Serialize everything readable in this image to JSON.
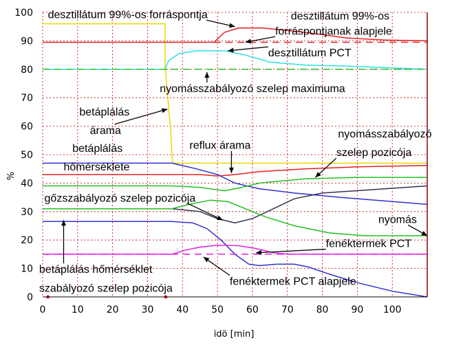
{
  "chart_data": {
    "type": "line",
    "xlabel": "idö [min]",
    "ylabel": "%",
    "xlim": [
      0,
      110
    ],
    "ylim": [
      0,
      100
    ],
    "x_ticks": [
      0,
      10,
      20,
      30,
      40,
      50,
      60,
      70,
      80,
      90,
      100
    ],
    "y_ticks": [
      0,
      10,
      20,
      30,
      40,
      50,
      60,
      70,
      80,
      90,
      100
    ],
    "grid": true,
    "series": [
      {
        "color": "#e8d800",
        "dash": false,
        "points": [
          [
            0,
            96
          ],
          [
            35,
            96
          ],
          [
            35,
            81
          ],
          [
            36.5,
            60
          ],
          [
            37.2,
            47
          ],
          [
            110,
            47
          ]
        ]
      },
      {
        "color": "#e02020",
        "dash": false,
        "points": [
          [
            0,
            89.5
          ],
          [
            49,
            89.5
          ],
          [
            52,
            93
          ],
          [
            56,
            94.5
          ],
          [
            63,
            94.5
          ],
          [
            75,
            93
          ],
          [
            87,
            91
          ],
          [
            98,
            90.3
          ],
          [
            110,
            90
          ]
        ]
      },
      {
        "color": "#e02020",
        "dash": true,
        "points": [
          [
            49,
            89.5
          ],
          [
            110,
            89.5
          ]
        ]
      },
      {
        "color": "#30e0e0",
        "dash": false,
        "points": [
          [
            0,
            80
          ],
          [
            35,
            80
          ],
          [
            36,
            83
          ],
          [
            39,
            85.5
          ],
          [
            44,
            86.5
          ],
          [
            52,
            86.5
          ],
          [
            58,
            85
          ],
          [
            65,
            82.5
          ],
          [
            75,
            81.5
          ],
          [
            90,
            81
          ],
          [
            110,
            80
          ]
        ]
      },
      {
        "color": "#20c020",
        "dash": true,
        "points": [
          [
            0,
            80
          ],
          [
            110,
            80
          ]
        ]
      },
      {
        "color": "#e02020",
        "dash": false,
        "points": [
          [
            0,
            43
          ],
          [
            37,
            43
          ],
          [
            45,
            43
          ],
          [
            50,
            42.5
          ],
          [
            55,
            43
          ],
          [
            62,
            44
          ],
          [
            75,
            45
          ],
          [
            90,
            45.7
          ],
          [
            110,
            46.2
          ]
        ]
      },
      {
        "color": "#3030d0",
        "dash": false,
        "points": [
          [
            0,
            47
          ],
          [
            37,
            47
          ],
          [
            44,
            45
          ],
          [
            50,
            43
          ],
          [
            55,
            40
          ],
          [
            62,
            38
          ],
          [
            72,
            36.5
          ],
          [
            85,
            35
          ],
          [
            100,
            33.5
          ],
          [
            110,
            32.5
          ]
        ]
      },
      {
        "color": "#20c020",
        "dash": false,
        "points": [
          [
            0,
            39
          ],
          [
            37,
            39
          ],
          [
            45,
            38.5
          ],
          [
            52,
            37.3
          ],
          [
            57,
            38.5
          ],
          [
            62,
            40
          ],
          [
            75,
            41.5
          ],
          [
            90,
            42
          ],
          [
            110,
            42
          ]
        ]
      },
      {
        "color": "#303050",
        "dash": false,
        "points": [
          [
            0,
            31
          ],
          [
            37,
            31
          ],
          [
            45,
            30
          ],
          [
            50,
            27.5
          ],
          [
            55,
            26
          ],
          [
            60,
            27.5
          ],
          [
            66,
            31
          ],
          [
            72,
            34.5
          ],
          [
            80,
            36.5
          ],
          [
            92,
            37.5
          ],
          [
            110,
            39
          ]
        ]
      },
      {
        "color": "#20c020",
        "dash": false,
        "points": [
          [
            0,
            31
          ],
          [
            37,
            31
          ],
          [
            42,
            32.5
          ],
          [
            48,
            34
          ],
          [
            53,
            33.5
          ],
          [
            58,
            31
          ],
          [
            64,
            28
          ],
          [
            72,
            25
          ],
          [
            82,
            22.5
          ],
          [
            92,
            21.5
          ],
          [
            110,
            21.5
          ]
        ]
      },
      {
        "color": "#3030d0",
        "dash": false,
        "points": [
          [
            0,
            26.5
          ],
          [
            37,
            26.5
          ],
          [
            43,
            26
          ],
          [
            47,
            24
          ],
          [
            51,
            20
          ],
          [
            55,
            15
          ],
          [
            59,
            11.5
          ],
          [
            62,
            11
          ],
          [
            67,
            11.5
          ],
          [
            72,
            11.5
          ],
          [
            76,
            10.5
          ],
          [
            82,
            8
          ],
          [
            90,
            5
          ],
          [
            100,
            2
          ],
          [
            110,
            0
          ]
        ]
      },
      {
        "color": "#e020e0",
        "dash": false,
        "points": [
          [
            0,
            15
          ],
          [
            37,
            15
          ],
          [
            41,
            16.5
          ],
          [
            45,
            17.5
          ],
          [
            50,
            18.2
          ],
          [
            56,
            18
          ],
          [
            61,
            17
          ],
          [
            66,
            15.5
          ],
          [
            70,
            15
          ],
          [
            110,
            15
          ]
        ]
      },
      {
        "color": "#e020e0",
        "dash": true,
        "points": [
          [
            0,
            15
          ],
          [
            110,
            15
          ]
        ]
      },
      {
        "color": "#8b0000",
        "dash": false,
        "points": [
          [
            110,
            0
          ],
          [
            110,
            100
          ]
        ]
      }
    ],
    "markers": [
      {
        "x": 1.5,
        "y": 0,
        "color": "#e02020"
      },
      {
        "x": 35.2,
        "y": 0,
        "color": "#e02020"
      }
    ],
    "annotations": [
      {
        "text": "desztillátum 99%-os forráspontja",
        "x": 1.5,
        "y": 98,
        "ax": 55,
        "ay": 95
      },
      {
        "text": "desztillátum 99%-os",
        "x": 71,
        "y": 97.5,
        "ax": null,
        "ay": null
      },
      {
        "text": "forráspontjanak  alapjele",
        "x": 66.5,
        "y": 92.2,
        "ax": 58,
        "ay": 89.5
      },
      {
        "text": "desztillátum PCT",
        "x": 64.5,
        "y": 84.5,
        "ax": 53,
        "ay": 86.5
      },
      {
        "text": "nyomásszabályozó szelep maximuma",
        "x": 33.5,
        "y": 72,
        "ax": 47,
        "ay": 79
      },
      {
        "text": "betáplálás",
        "x": 10.5,
        "y": 63.8,
        "ax": null,
        "ay": null
      },
      {
        "text": "árama",
        "x": 13.5,
        "y": 57.3,
        "ax": 35.7,
        "ay": 66
      },
      {
        "text": "betáplálás",
        "x": 8.5,
        "y": 51,
        "ax": null,
        "ay": null
      },
      {
        "text": "hőmérséklete",
        "x": 6,
        "y": 44.5,
        "ax": null,
        "ay": null
      },
      {
        "text": "reflux árama",
        "x": 42,
        "y": 52,
        "ax": 54,
        "ay": 43.5
      },
      {
        "text": "nyomásszabályozó",
        "x": 84.5,
        "y": 56,
        "ax": null,
        "ay": null
      },
      {
        "text": "szelep  pozicója",
        "x": 84,
        "y": 49.5,
        "ax": 78,
        "ay": 42
      },
      {
        "text": "gőzszabályozó szelep pozicója",
        "x": 0.5,
        "y": 33.5,
        "ax": 51.5,
        "ay": 27
      },
      {
        "text": "nyomás",
        "x": 96,
        "y": 26,
        "ax": 110,
        "ay": 21.5
      },
      {
        "text": "fenéktermek PCT",
        "x": 81,
        "y": 17.5,
        "ax": 61,
        "ay": 15.5
      },
      {
        "text": "betáplálás hőmérséklet",
        "x": -1,
        "y": 8.4,
        "ax": 6,
        "ay": 27
      },
      {
        "text": "fenéktermek PCT alapjele",
        "x": 53.5,
        "y": 4.2,
        "ax": 46,
        "ay": 14
      },
      {
        "text": "szabályozó szelep pozicója",
        "x": -1,
        "y": 1.8,
        "ax": null,
        "ay": null
      }
    ]
  }
}
